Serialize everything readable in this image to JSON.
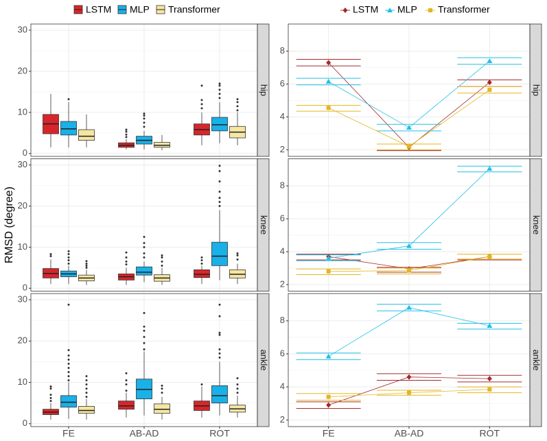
{
  "chart_data": [
    {
      "type": "box",
      "y_label": "RMSD (degree)",
      "categories": [
        "FE",
        "AB-AD",
        "ROT"
      ],
      "ylim": [
        -0.7,
        31.5
      ],
      "yticks": [
        0,
        10,
        20,
        30
      ],
      "grid": true,
      "series": [
        {
          "name": "LSTM",
          "color": "#d7262b"
        },
        {
          "name": "MLP",
          "color": "#1ab0e8"
        },
        {
          "name": "Transformer",
          "color": "#f5e6a3"
        }
      ],
      "facets": [
        {
          "label": "hip",
          "series": [
            {
              "boxes": [
                {
                  "whisker_low": 1.5,
                  "q1": 4.8,
                  "median": 7.2,
                  "q3": 9.5,
                  "whisker_high": 14.5,
                  "outliers": []
                },
                {
                  "whisker_low": 1,
                  "q1": 1.5,
                  "median": 2,
                  "q3": 2.6,
                  "whisker_high": 3.5,
                  "outliers": [
                    4,
                    4.6,
                    5.3,
                    5.8
                  ]
                },
                {
                  "whisker_low": 2,
                  "q1": 4.5,
                  "median": 5.8,
                  "q3": 7.2,
                  "whisker_high": 10,
                  "outliers": [
                    11,
                    12,
                    13,
                    16.5
                  ]
                }
              ]
            },
            {
              "boxes": [
                {
                  "whisker_low": 1.5,
                  "q1": 4.5,
                  "median": 6,
                  "q3": 7.8,
                  "whisker_high": 12.5,
                  "outliers": [
                    13.2
                  ]
                },
                {
                  "whisker_low": 1,
                  "q1": 2.3,
                  "median": 3.2,
                  "q3": 4.2,
                  "whisker_high": 5.5,
                  "outliers": [
                    6.5,
                    7.5,
                    8.5,
                    9.2,
                    9.7
                  ]
                },
                {
                  "whisker_low": 2.5,
                  "q1": 5.5,
                  "median": 7,
                  "q3": 8.8,
                  "whisker_high": 12.5,
                  "outliers": [
                    13.5,
                    14.5,
                    15.5,
                    16.5,
                    17
                  ]
                }
              ]
            },
            {
              "boxes": [
                {
                  "whisker_low": 1.5,
                  "q1": 3.2,
                  "median": 4.2,
                  "q3": 5.8,
                  "whisker_high": 9.5,
                  "outliers": []
                },
                {
                  "whisker_low": 0.8,
                  "q1": 1.5,
                  "median": 2,
                  "q3": 2.7,
                  "whisker_high": 4.5,
                  "outliers": []
                },
                {
                  "whisker_low": 2,
                  "q1": 3.8,
                  "median": 5.2,
                  "q3": 6.6,
                  "whisker_high": 10,
                  "outliers": [
                    10.5,
                    11.5,
                    12.5,
                    13.2
                  ]
                }
              ]
            }
          ]
        },
        {
          "label": "knee",
          "series": [
            {
              "boxes": [
                {
                  "whisker_low": 1,
                  "q1": 2.5,
                  "median": 3.6,
                  "q3": 4.8,
                  "whisker_high": 7,
                  "outliers": [
                    7.8,
                    8.3
                  ]
                },
                {
                  "whisker_low": 0.8,
                  "q1": 2,
                  "median": 2.8,
                  "q3": 3.5,
                  "whisker_high": 5,
                  "outliers": [
                    5.8,
                    6.5,
                    7.5,
                    8.7
                  ]
                },
                {
                  "whisker_low": 1,
                  "q1": 2.6,
                  "median": 3.4,
                  "q3": 4.5,
                  "whisker_high": 5.5,
                  "outliers": [
                    6,
                    6.8,
                    7.5
                  ]
                }
              ]
            },
            {
              "boxes": [
                {
                  "whisker_low": 1,
                  "q1": 2.8,
                  "median": 3.5,
                  "q3": 4.2,
                  "whisker_high": 5.5,
                  "outliers": [
                    6,
                    6.8,
                    7.5,
                    8.3,
                    9
                  ]
                },
                {
                  "whisker_low": 1.5,
                  "q1": 3.2,
                  "median": 3.9,
                  "q3": 5.2,
                  "whisker_high": 6.5,
                  "outliers": [
                    7.5,
                    8.5,
                    10,
                    11,
                    12.5
                  ]
                },
                {
                  "whisker_low": 2,
                  "q1": 5.5,
                  "median": 7.8,
                  "q3": 11.2,
                  "whisker_high": 19,
                  "outliers": [
                    20,
                    21,
                    22,
                    23.5,
                    26,
                    28.5,
                    29.8
                  ]
                }
              ]
            },
            {
              "boxes": [
                {
                  "whisker_low": 0.8,
                  "q1": 1.8,
                  "median": 2.5,
                  "q3": 3.2,
                  "whisker_high": 4.5,
                  "outliers": [
                    5,
                    5.5,
                    6,
                    6.6
                  ]
                },
                {
                  "whisker_low": 0.8,
                  "q1": 1.7,
                  "median": 2.5,
                  "q3": 3.3,
                  "whisker_high": 5,
                  "outliers": [
                    5.5,
                    6.5,
                    7.5,
                    8
                  ]
                },
                {
                  "whisker_low": 1,
                  "q1": 2.5,
                  "median": 3.4,
                  "q3": 4.5,
                  "whisker_high": 6,
                  "outliers": [
                    7,
                    8,
                    8.5
                  ]
                }
              ]
            }
          ]
        },
        {
          "label": "ankle",
          "series": [
            {
              "boxes": [
                {
                  "whisker_low": 1,
                  "q1": 2.2,
                  "median": 2.8,
                  "q3": 3.5,
                  "whisker_high": 5,
                  "outliers": [
                    5.5,
                    6.2,
                    7,
                    8.5,
                    9
                  ]
                },
                {
                  "whisker_low": 1.5,
                  "q1": 3.5,
                  "median": 4.3,
                  "q3": 5.5,
                  "whisker_high": 7.5,
                  "outliers": [
                    8,
                    9.5,
                    10.5,
                    12.2
                  ]
                },
                {
                  "whisker_low": 1.5,
                  "q1": 3.2,
                  "median": 4.3,
                  "q3": 5.5,
                  "whisker_high": 9,
                  "outliers": [
                    9.5
                  ]
                }
              ]
            },
            {
              "boxes": [
                {
                  "whisker_low": 1.2,
                  "q1": 4,
                  "median": 5.2,
                  "q3": 6.8,
                  "whisker_high": 10,
                  "outliers": [
                    10.5,
                    11.5,
                    12.5,
                    13.5,
                    14.5,
                    15.5,
                    16.5,
                    17.8,
                    28.8
                  ]
                },
                {
                  "whisker_low": 2,
                  "q1": 6,
                  "median": 8.3,
                  "q3": 10.8,
                  "whisker_high": 17.5,
                  "outliers": [
                    18,
                    19.5,
                    21,
                    22.5,
                    23.5,
                    26.8
                  ]
                },
                {
                  "whisker_low": 2,
                  "q1": 5,
                  "median": 6.8,
                  "q3": 9.2,
                  "whisker_high": 15,
                  "outliers": [
                    16,
                    17,
                    18,
                    21.5,
                    22,
                    26,
                    28.8
                  ]
                }
              ]
            },
            {
              "boxes": [
                {
                  "whisker_low": 1,
                  "q1": 2.5,
                  "median": 3.2,
                  "q3": 4.2,
                  "whisker_high": 6,
                  "outliers": [
                    6.5,
                    7.5,
                    8.5,
                    9.5,
                    10.5,
                    11.5
                  ]
                },
                {
                  "whisker_low": 1,
                  "q1": 2.5,
                  "median": 3.5,
                  "q3": 4.8,
                  "whisker_high": 6.5,
                  "outliers": [
                    7.5,
                    8.5,
                    9.2
                  ]
                },
                {
                  "whisker_low": 1.5,
                  "q1": 2.8,
                  "median": 3.6,
                  "q3": 4.5,
                  "whisker_high": 6.8,
                  "outliers": [
                    7.5,
                    8.5,
                    9.5,
                    11
                  ]
                }
              ]
            }
          ]
        }
      ]
    },
    {
      "type": "line",
      "categories": [
        "FE",
        "AB-AD",
        "ROT"
      ],
      "ylim": [
        1.6,
        9.65
      ],
      "yticks": [
        2,
        4,
        6,
        8
      ],
      "grid": true,
      "series": [
        {
          "name": "LSTM",
          "color": "#a52a2a",
          "marker": "diamond"
        },
        {
          "name": "MLP",
          "color": "#22bfe6",
          "marker": "triangle"
        },
        {
          "name": "Transformer",
          "color": "#e3b520",
          "marker": "square"
        }
      ],
      "facets": [
        {
          "label": "hip",
          "series": [
            {
              "values": [
                7.3,
                2.15,
                6.1
              ],
              "lower": [
                7.1,
                1.95,
                5.85
              ],
              "upper": [
                7.5,
                2.35,
                6.25
              ]
            },
            {
              "values": [
                6.15,
                3.35,
                7.4
              ],
              "lower": [
                5.95,
                3.15,
                7.2
              ],
              "upper": [
                6.35,
                3.55,
                7.6
              ]
            },
            {
              "values": [
                4.55,
                2.2,
                5.65
              ],
              "lower": [
                4.35,
                2.0,
                5.45
              ],
              "upper": [
                4.7,
                2.35,
                5.85
              ]
            }
          ]
        },
        {
          "label": "knee",
          "series": [
            {
              "values": [
                3.7,
                2.95,
                3.7
              ],
              "lower": [
                3.5,
                2.75,
                3.5
              ],
              "upper": [
                3.85,
                3.05,
                3.85
              ]
            },
            {
              "values": [
                3.6,
                4.35,
                9.05
              ],
              "lower": [
                3.45,
                4.15,
                8.85
              ],
              "upper": [
                3.8,
                4.55,
                9.2
              ]
            },
            {
              "values": [
                2.8,
                2.85,
                3.7
              ],
              "lower": [
                2.6,
                2.65,
                3.55
              ],
              "upper": [
                2.95,
                3.0,
                3.85
              ]
            }
          ]
        },
        {
          "label": "ankle",
          "series": [
            {
              "values": [
                2.9,
                4.6,
                4.5
              ],
              "lower": [
                2.7,
                4.4,
                4.3
              ],
              "upper": [
                3.1,
                4.8,
                4.7
              ]
            },
            {
              "values": [
                5.85,
                8.8,
                7.7
              ],
              "lower": [
                5.65,
                8.6,
                7.5
              ],
              "upper": [
                6.05,
                9.0,
                7.85
              ]
            },
            {
              "values": [
                3.4,
                3.65,
                3.85
              ],
              "lower": [
                3.2,
                3.5,
                3.65
              ],
              "upper": [
                3.6,
                3.8,
                4.0
              ]
            }
          ]
        }
      ]
    }
  ]
}
